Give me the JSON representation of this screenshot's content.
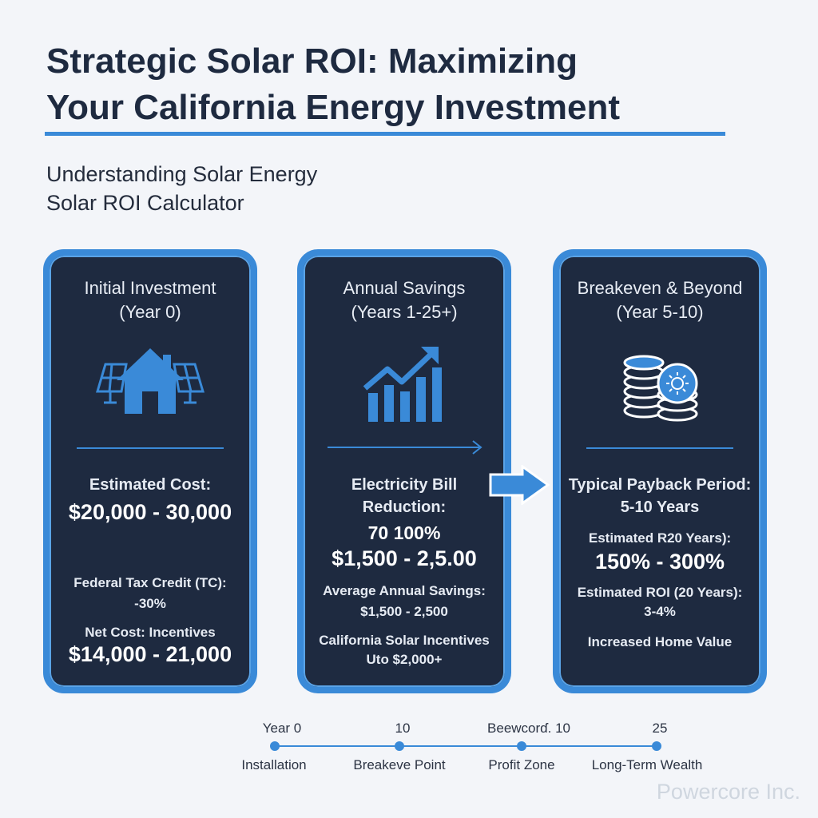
{
  "header": {
    "title_line1": "Strategic Solar ROI: Maximizing",
    "title_line2": "Your California Energy Investment",
    "subtitle_line1": "Understanding Solar Energy",
    "subtitle_line2": "Solar ROI Calculator"
  },
  "cards": [
    {
      "title_line1": "Initial Investment",
      "title_line2": "(Year 0)",
      "icon": "solar-house-icon",
      "cost_label": "Estimated Cost:",
      "cost_value": "$20,000 - 30,000",
      "tax_label": "Federal Tax Credit (TC):",
      "tax_value": "-30%",
      "net_label": "Net Cost: Incentives",
      "net_value": "$14,000 - 21,000"
    },
    {
      "title_line1": "Annual Savings",
      "title_line2": "(Years 1-25+)",
      "icon": "growth-chart-icon",
      "bill_label_line1": "Electricity Bill",
      "bill_label_line2": "Reduction:",
      "bill_percent": "70 100%",
      "bill_value": "$1,500 - 2,5.00",
      "avg_label": "Average Annual Savings:",
      "avg_value": "$1,500 - 2,500",
      "incentive_label": "California Solar Incentives",
      "incentive_value": "Uto $2,000+"
    },
    {
      "title_line1": "Breakeven & Beyond",
      "title_line2": "(Year 5-10)",
      "icon": "coin-stack-icon",
      "payback_label": "Typical Payback Period:",
      "payback_value": "5-10 Years",
      "r20_label": "Estimated R20 Years):",
      "r20_value": "150% - 300%",
      "roi_label": "Estimated ROI (20 Years):",
      "roi_value": "3-4%",
      "home_value": "Increased Home Value"
    }
  ],
  "timeline": [
    {
      "top": "Year 0",
      "bottom": "Installation"
    },
    {
      "top": "10",
      "bottom": "Breakeve Point"
    },
    {
      "top": "Beewcorɗ. 10",
      "bottom": "Profit Zone"
    },
    {
      "top": "25",
      "bottom": "Long-Term Wealth"
    }
  ],
  "watermark": "Powercore Inc.",
  "colors": {
    "accent": "#3a8ad8",
    "card_bg": "#1e2a40",
    "page_bg": "#f3f5f9",
    "title_text": "#1e2a40"
  }
}
